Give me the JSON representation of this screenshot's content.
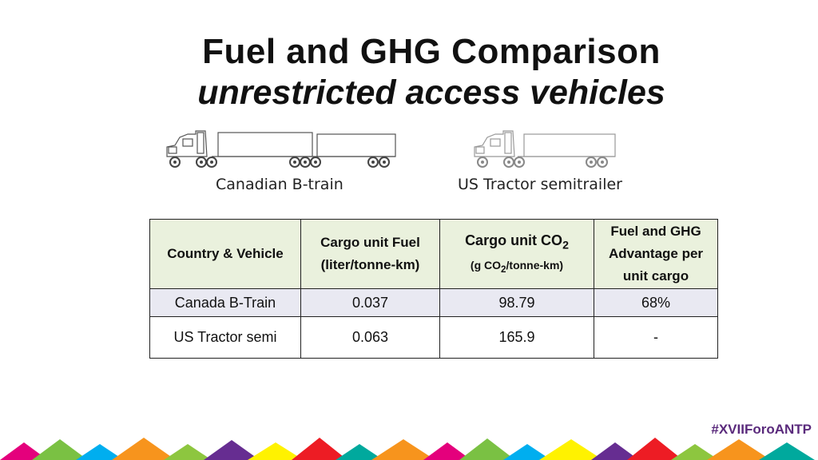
{
  "title": {
    "line1": "Fuel and GHG  Comparison",
    "line2": "unrestricted access vehicles"
  },
  "vehicles": {
    "left_label": "Canadian B-train",
    "right_label": "US Tractor semitrailer"
  },
  "table": {
    "headers": {
      "col1": "Country & Vehicle",
      "col2": "Cargo unit Fuel (liter/tonne-km)",
      "col3_main": "Cargo unit CO",
      "col3_sub": "2",
      "col3_unit_pre": "(g CO",
      "col3_unit_sub": "2",
      "col3_unit_post": "/tonne-km)",
      "col4": "Fuel and GHG Advantage per unit cargo"
    },
    "rows": [
      {
        "vehicle": "Canada B-Train",
        "fuel": "0.037",
        "co2": "98.79",
        "advantage": "68%"
      },
      {
        "vehicle": "US  Tractor semi",
        "fuel": "0.063",
        "co2": "165.9",
        "advantage": "-"
      }
    ]
  },
  "footer": {
    "hashtag": "#XVIIForoANTP"
  },
  "colors": {
    "header_bg": "#eaf1dd",
    "row1_bg": "#e9e9f2",
    "hashtag": "#5a2a7c"
  }
}
